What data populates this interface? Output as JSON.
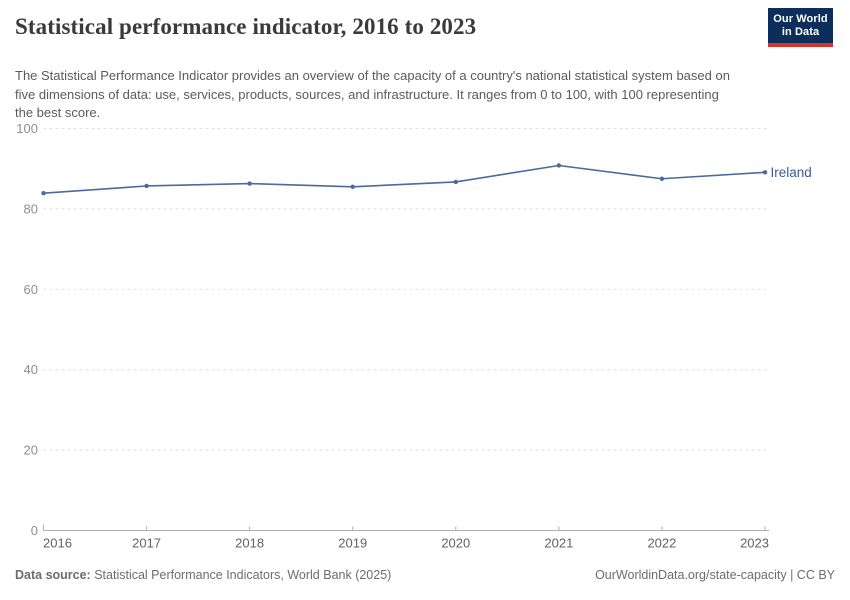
{
  "header": {
    "title": "Statistical performance indicator, 2016 to 2023",
    "subtitle": "The Statistical Performance Indicator provides an overview of the capacity of a country's national statistical system based on five dimensions of data: use, services, products, sources, and infrastructure. It ranges from 0 to 100, with 100 representing the best score.",
    "logo": {
      "line1": "Our World",
      "line2": "in Data",
      "background": "#0d2e5a",
      "accent": "#d4342c"
    }
  },
  "chart_data": {
    "type": "line",
    "title": "Statistical performance indicator, 2016 to 2023",
    "x": [
      2016,
      2017,
      2018,
      2019,
      2020,
      2021,
      2022,
      2023
    ],
    "series": [
      {
        "name": "Ireland",
        "color": "#4c6a9c",
        "label_color": "#3d5c94",
        "values": [
          83.9,
          85.7,
          86.3,
          85.5,
          86.7,
          90.8,
          87.5,
          89.1
        ]
      }
    ],
    "ylim": [
      0,
      100
    ],
    "yticks": [
      0,
      20,
      40,
      60,
      80,
      100
    ],
    "xlabel": "",
    "ylabel": "",
    "grid": "dashed-horizontal",
    "legend": "series-end-label",
    "axis_color": "#b0b0b0",
    "grid_color": "#e1e1e1",
    "ytick_color": "#8f8f8f",
    "xtick_color": "#636363"
  },
  "footer": {
    "datasource_label": "Data source:",
    "datasource_text": " Statistical Performance Indicators, World Bank (2025)",
    "license_text": "OurWorldinData.org/state-capacity | CC BY"
  }
}
